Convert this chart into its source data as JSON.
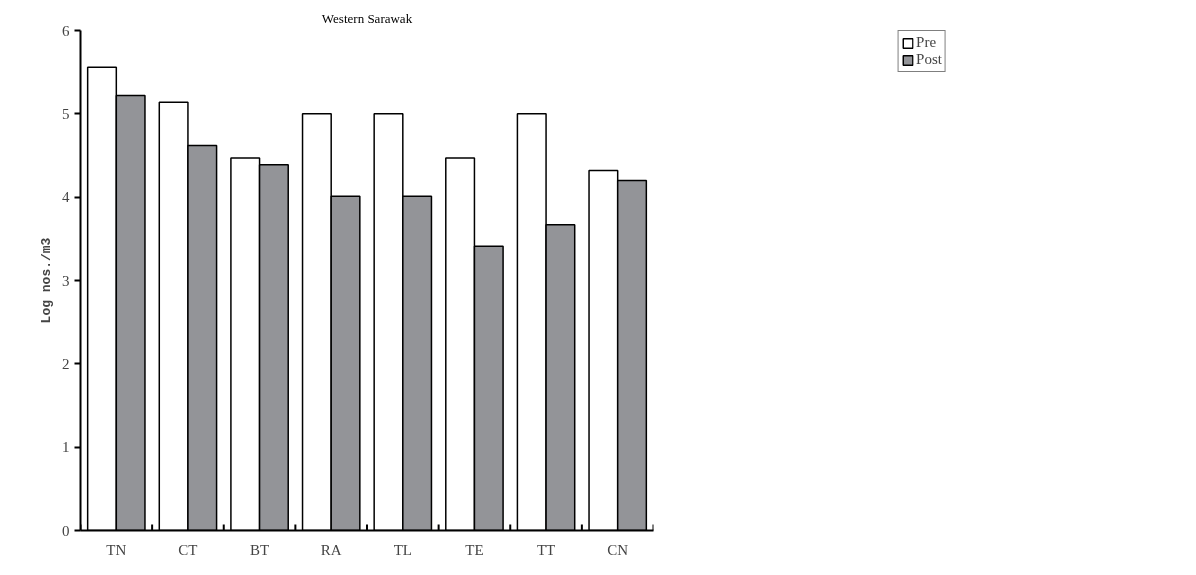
{
  "chart_data": {
    "type": "bar",
    "title": "Western Sarawak",
    "ylabel": "Log nos./m3",
    "categories": [
      "TN",
      "CT",
      "BT",
      "RA",
      "TL",
      "TE",
      "TT",
      "CN"
    ],
    "series": [
      {
        "name": "Pre",
        "color": "#ffffff",
        "values": [
          5.56,
          5.14,
          4.47,
          5.0,
          5.0,
          4.47,
          5.0,
          4.32
        ]
      },
      {
        "name": "Post",
        "color": "#939498",
        "values": [
          5.22,
          4.62,
          4.39,
          4.01,
          4.01,
          3.41,
          3.67,
          4.2
        ]
      }
    ],
    "ylim": [
      0,
      6
    ],
    "yticks": [
      0,
      1,
      2,
      3,
      4,
      5,
      6
    ],
    "grid": false,
    "legend": "top right"
  }
}
